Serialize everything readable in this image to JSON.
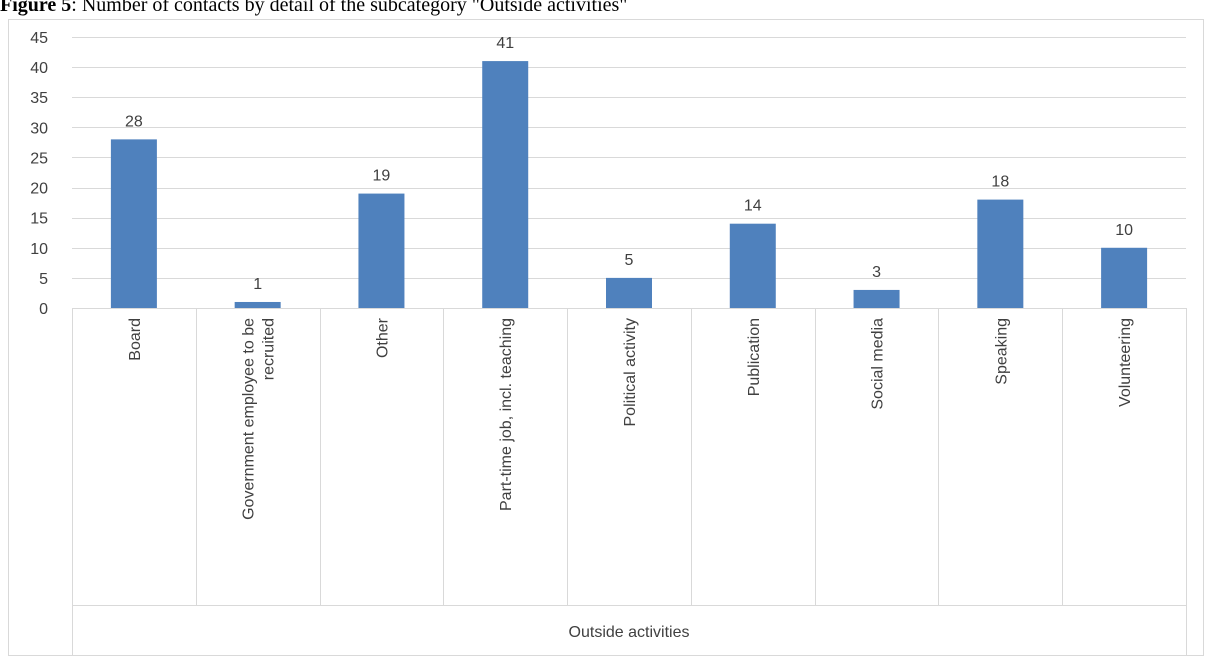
{
  "caption": {
    "prefix": "Figure 5",
    "text": ": Number of contacts by detail of the subcategory \"Outside activities\""
  },
  "chart_data": {
    "type": "bar",
    "title": "",
    "xlabel": "",
    "ylabel": "",
    "group_label": "Outside activities",
    "categories": [
      "Board",
      [
        "Government employee to be",
        "recruited"
      ],
      "Other",
      "Part-time job, incl. teaching",
      "Political activity",
      "Publication",
      "Social media",
      "Speaking",
      "Volunteering"
    ],
    "values": [
      28,
      1,
      19,
      41,
      5,
      14,
      3,
      18,
      10
    ],
    "ylim": [
      0,
      45
    ],
    "yticks": [
      0,
      5,
      10,
      15,
      20,
      25,
      30,
      35,
      40,
      45
    ],
    "grid": true,
    "legend": "none",
    "bar_color": "#4f81bd",
    "gridline_color": "#d9d9d9"
  }
}
